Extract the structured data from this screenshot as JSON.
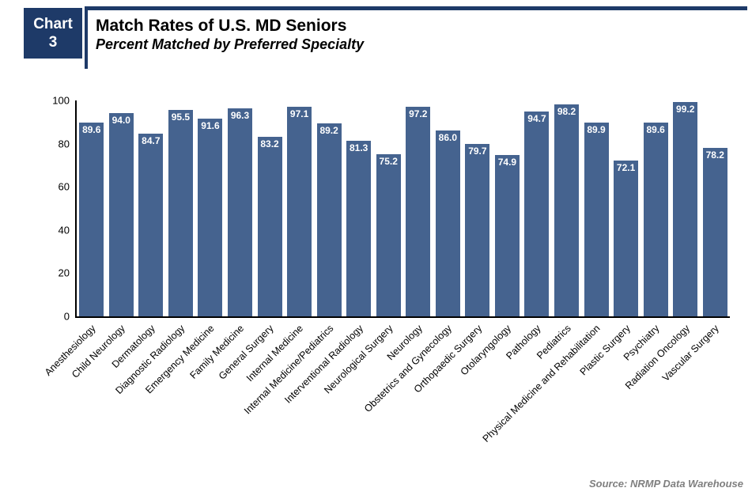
{
  "header": {
    "badge_line1": "Chart",
    "badge_line2": "3",
    "title": "Match Rates of U.S. MD Seniors",
    "subtitle": "Percent Matched by Preferred Specialty"
  },
  "source_note": "Source: NRMP Data Warehouse",
  "colors": {
    "navy_accent": "#1E3A68",
    "bar_blue": "#45638F",
    "value_label": "#FFFFFF",
    "axis": "#000000",
    "source_gray": "#7F7F7F"
  },
  "chart_data": {
    "type": "bar",
    "title": "Match Rates of U.S. MD Seniors",
    "subtitle": "Percent Matched by Preferred Specialty",
    "categories": [
      "Anesthesiology",
      "Child Neurology",
      "Dermatology",
      "Diagnostic Radiology",
      "Emergency Medicine",
      "Family Medicine",
      "General Surgery",
      "Internal Medicine",
      "Internal Medicine/Pediatrics",
      "Interventional Radiology",
      "Neurological Surgery",
      "Neurology",
      "Obstetrics and Gynecology",
      "Orthopaedic Surgery",
      "Otolaryngology",
      "Pathology",
      "Pediatrics",
      "Physical Medicine and Rehabilitation",
      "Plastic Surgery",
      "Psychiatry",
      "Radiation Oncology",
      "Vascular Surgery"
    ],
    "values": [
      89.6,
      94.0,
      84.7,
      95.5,
      91.6,
      96.3,
      83.2,
      97.1,
      89.2,
      81.3,
      75.2,
      97.2,
      86.0,
      79.7,
      74.9,
      94.7,
      98.2,
      89.9,
      72.1,
      89.6,
      99.2,
      78.2
    ],
    "value_label_decimals": 1,
    "xlabel": "",
    "ylabel": "",
    "ylim": [
      0,
      100
    ],
    "yticks": [
      0,
      20,
      40,
      60,
      80,
      100
    ],
    "grid": false,
    "legend": false,
    "x_tick_rotation_deg": 45
  }
}
